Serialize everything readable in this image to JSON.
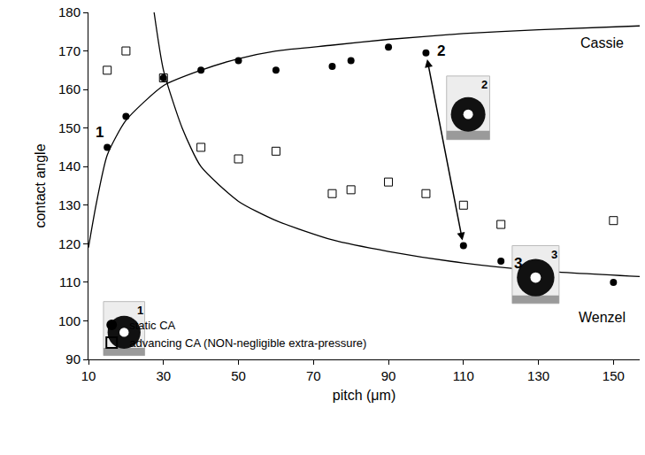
{
  "chart_data": {
    "type": "scatter",
    "xlabel": "pitch (μm)",
    "ylabel": "contact angle",
    "xlim": [
      10,
      157
    ],
    "ylim": [
      90,
      180
    ],
    "xticks": [
      10,
      30,
      50,
      70,
      90,
      110,
      130,
      150
    ],
    "yticks": [
      90,
      100,
      110,
      120,
      130,
      140,
      150,
      160,
      170,
      180
    ],
    "grid": false,
    "legend": "lower left",
    "series": [
      {
        "name": "static CA",
        "marker": "circle",
        "color": "#000000",
        "x": [
          15,
          20,
          30,
          40,
          50,
          60,
          75,
          80,
          90,
          100,
          110,
          120,
          150
        ],
        "values": [
          145,
          153,
          163,
          165,
          167.5,
          165,
          166,
          167.5,
          171,
          169.5,
          119.5,
          115.5,
          110
        ]
      },
      {
        "name": "advancing CA (NON-negligible extra-pressure)",
        "marker": "square-open",
        "color": "#000000",
        "x": [
          15,
          20,
          30,
          40,
          50,
          60,
          75,
          80,
          90,
          100,
          110,
          120,
          150
        ],
        "values": [
          165,
          170,
          163,
          145,
          142,
          144,
          133,
          134,
          136,
          133,
          130,
          125,
          126
        ]
      }
    ],
    "curves": [
      {
        "name": "Cassie",
        "color": "#000000",
        "label_at": [
          147,
          172
        ],
        "x": [
          10,
          12,
          15,
          20,
          30,
          40,
          50,
          60,
          75,
          90,
          110,
          130,
          157
        ],
        "values": [
          119,
          130,
          143,
          152,
          161,
          165,
          168,
          170,
          171.5,
          173,
          174.5,
          175.5,
          176.5
        ]
      },
      {
        "name": "Wenzel",
        "color": "#000000",
        "label_at": [
          147,
          101
        ],
        "x": [
          27.5,
          30,
          35,
          40,
          50,
          60,
          75,
          90,
          110,
          130,
          157
        ],
        "values": [
          180,
          165,
          150,
          140,
          131,
          126,
          121,
          118,
          115,
          113,
          111.5
        ]
      }
    ],
    "annotations": [
      {
        "text": "1",
        "x": 13,
        "y": 149
      },
      {
        "text": "2",
        "x": 104,
        "y": 170
      },
      {
        "text": "3",
        "x": 124.5,
        "y": 115
      }
    ],
    "arrow": {
      "from": [
        100,
        169.5
      ],
      "to": [
        110,
        119.5
      ],
      "line_style": "dotted"
    },
    "insets": [
      {
        "label": "1",
        "x": [
          14,
          25
        ],
        "y": [
          91,
          105
        ]
      },
      {
        "label": "2",
        "x": [
          105.5,
          117
        ],
        "y": [
          147,
          163.5
        ]
      },
      {
        "label": "3",
        "x": [
          123,
          135.5
        ],
        "y": [
          104.5,
          119.5
        ]
      }
    ]
  }
}
